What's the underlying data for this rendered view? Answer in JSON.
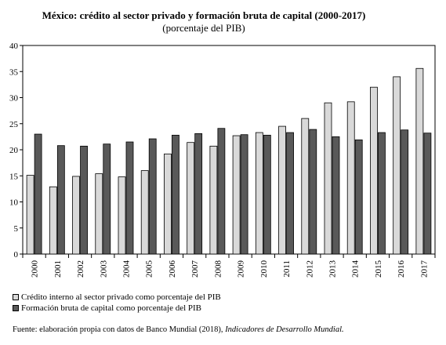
{
  "chart_data": {
    "type": "bar",
    "title": "México: crédito al sector privado y formación bruta de capital (2000-2017)",
    "subtitle": "(porcentaje del PIB)",
    "categories": [
      "2000",
      "2001",
      "2002",
      "2003",
      "2004",
      "2005",
      "2006",
      "2007",
      "2008",
      "2009",
      "2010",
      "2011",
      "2012",
      "2013",
      "2014",
      "2015",
      "2016",
      "2017"
    ],
    "series": [
      {
        "name": "Crédito interno al sector privado como porcentaje del PIB",
        "color": "#d9d9d9",
        "values": [
          15.1,
          12.9,
          14.9,
          15.4,
          14.8,
          16.0,
          19.2,
          21.4,
          20.7,
          22.7,
          23.3,
          24.5,
          26.0,
          29.0,
          29.2,
          32.0,
          34.0,
          35.6
        ]
      },
      {
        "name": "Formación bruta de capital como porcentaje del PIB",
        "color": "#595959",
        "values": [
          23.0,
          20.8,
          20.7,
          21.1,
          21.5,
          22.1,
          22.8,
          23.1,
          24.1,
          22.9,
          22.8,
          23.3,
          23.9,
          22.5,
          21.9,
          23.3,
          23.8,
          23.2
        ]
      }
    ],
    "yticks": [
      "0",
      "5",
      "10",
      "15",
      "20",
      "25",
      "30",
      "35",
      "40"
    ],
    "ylim": [
      0,
      40
    ],
    "legend_position": "bottom-left"
  },
  "source": {
    "prefix": "Fuente: elaboración propia con datos de Banco Mundial (2018), ",
    "italic": "Indicadores de Desarrollo Mundial."
  }
}
